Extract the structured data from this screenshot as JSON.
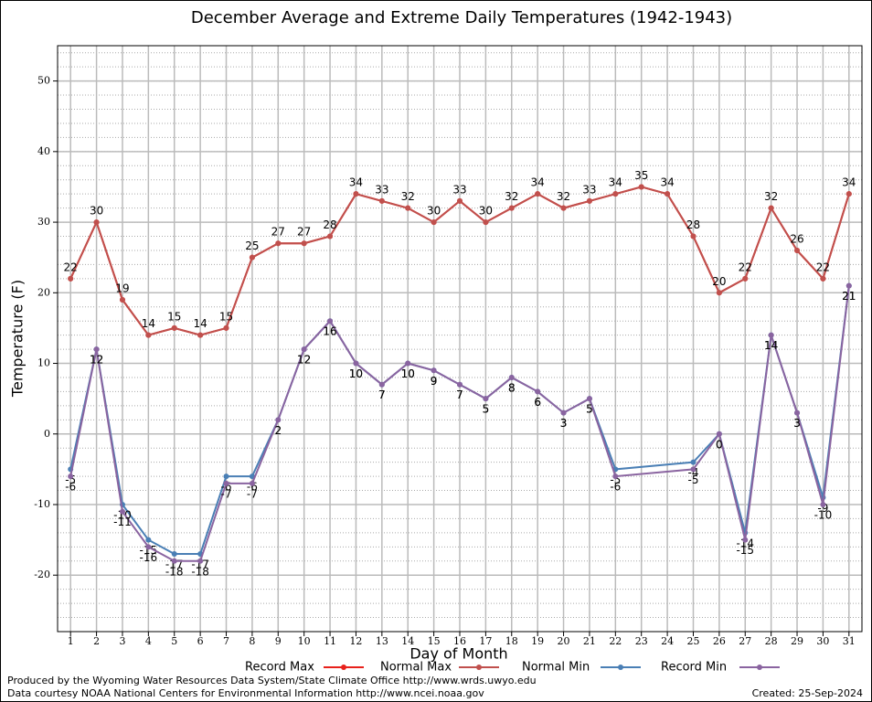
{
  "chart_data": {
    "type": "line",
    "title": "December Average and Extreme Daily Temperatures (1942-1943)",
    "x_label": "Day of Month",
    "y_label": "Temperature (F)",
    "x": [
      1,
      2,
      3,
      4,
      5,
      6,
      7,
      8,
      9,
      10,
      11,
      12,
      13,
      14,
      15,
      16,
      17,
      18,
      19,
      20,
      21,
      22,
      23,
      24,
      25,
      26,
      27,
      28,
      29,
      30,
      31
    ],
    "xlim": [
      0.5,
      31.5
    ],
    "xticks": [
      1,
      2,
      3,
      4,
      5,
      6,
      7,
      8,
      9,
      10,
      11,
      12,
      13,
      14,
      15,
      16,
      17,
      18,
      19,
      20,
      21,
      22,
      23,
      24,
      25,
      26,
      27,
      28,
      29,
      30,
      31
    ],
    "ylim": [
      -28,
      55
    ],
    "yticks": [
      -20,
      -10,
      0,
      10,
      20,
      30,
      40,
      50
    ],
    "grid": true,
    "legend": "bottom",
    "series": [
      {
        "name": "Record Max",
        "color": "#e8211b",
        "labels": false,
        "values": [
          22,
          30,
          19,
          14,
          15,
          14,
          15,
          25,
          27,
          27,
          28,
          34,
          33,
          32,
          30,
          33,
          30,
          32,
          34,
          32,
          33,
          34,
          35,
          34,
          28,
          20,
          22,
          32,
          26,
          22,
          34
        ]
      },
      {
        "name": "Normal Max",
        "color": "#c0504d",
        "labels": true,
        "label_side": "above",
        "values": [
          22,
          30,
          19,
          14,
          15,
          14,
          15,
          25,
          27,
          27,
          28,
          34,
          33,
          32,
          30,
          33,
          30,
          32,
          34,
          32,
          33,
          34,
          35,
          34,
          28,
          20,
          22,
          32,
          26,
          22,
          34
        ]
      },
      {
        "name": "Normal Min",
        "color": "#4a7fb5",
        "labels": true,
        "label_side": "below",
        "x": [
          1,
          2,
          3,
          4,
          5,
          6,
          7,
          8,
          9,
          10,
          11,
          12,
          13,
          14,
          15,
          16,
          17,
          18,
          19,
          20,
          21,
          22,
          25,
          26,
          27,
          28,
          29,
          30,
          31
        ],
        "values": [
          -5,
          12,
          -10,
          -15,
          -17,
          -17,
          -6,
          -6,
          2,
          12,
          16,
          10,
          7,
          10,
          9,
          7,
          5,
          8,
          6,
          3,
          5,
          -5,
          -4,
          0,
          -14,
          14,
          3,
          -9,
          21
        ]
      },
      {
        "name": "Record Min",
        "color": "#8a64a0",
        "labels": true,
        "label_side": "below",
        "x": [
          1,
          2,
          3,
          4,
          5,
          6,
          7,
          8,
          9,
          10,
          11,
          12,
          13,
          14,
          15,
          16,
          17,
          18,
          19,
          20,
          21,
          22,
          25,
          26,
          27,
          28,
          29,
          30,
          31
        ],
        "values": [
          -6,
          12,
          -11,
          -16,
          -18,
          -18,
          -7,
          -7,
          2,
          12,
          16,
          10,
          7,
          10,
          9,
          7,
          5,
          8,
          6,
          3,
          5,
          -6,
          -5,
          0,
          -15,
          14,
          3,
          -10,
          21
        ]
      }
    ],
    "footer_left": [
      "Produced by the Wyoming Water Resources Data System/State Climate Office http://www.wrds.uwyo.edu",
      "Data courtesy NOAA National Centers for Environmental Information http://www.ncei.noaa.gov"
    ],
    "footer_right": "Created:  25-Sep-2024"
  }
}
